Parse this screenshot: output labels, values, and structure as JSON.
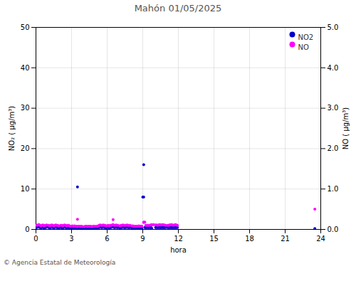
{
  "chart_data": {
    "type": "scatter",
    "title": "Mahón 01/05/2025",
    "xlabel": "hora",
    "ylabel": "NO₂ ( µg/m³)",
    "y2label": "NO ( µg/m³)",
    "annotations": [
      "© Agencia Estatal de Meteorología"
    ],
    "xlim": [
      0,
      24
    ],
    "xticks": [
      0,
      3,
      6,
      9,
      12,
      15,
      18,
      21,
      24
    ],
    "ylim": [
      0,
      50
    ],
    "yticks": [
      0,
      10,
      20,
      30,
      40,
      50
    ],
    "y2lim": [
      0,
      5
    ],
    "y2ticks": [
      0,
      1,
      2,
      3,
      4,
      5
    ],
    "grid": true,
    "legend": "upper right",
    "series": [
      {
        "name": "NO2",
        "color": "#0000cc",
        "x": [
          0.08,
          0.17,
          0.25,
          0.33,
          0.42,
          0.5,
          0.58,
          0.67,
          0.75,
          0.83,
          0.92,
          1.08,
          1.17,
          1.25,
          1.33,
          1.42,
          1.5,
          1.58,
          1.67,
          1.75,
          1.83,
          1.92,
          2.08,
          2.17,
          2.25,
          2.33,
          2.42,
          2.5,
          2.58,
          2.67,
          2.75,
          2.83,
          2.92,
          3.08,
          3.17,
          3.25,
          3.33,
          3.42,
          3.5,
          3.58,
          3.67,
          3.75,
          3.83,
          3.92,
          4.08,
          4.17,
          4.25,
          4.33,
          4.42,
          4.5,
          4.58,
          4.67,
          4.75,
          4.83,
          4.92,
          5.08,
          5.17,
          5.25,
          5.33,
          5.42,
          5.5,
          5.58,
          5.67,
          5.75,
          5.83,
          5.92,
          6.08,
          6.17,
          6.25,
          6.33,
          6.42,
          6.5,
          6.58,
          6.67,
          6.75,
          6.83,
          6.92,
          7.08,
          7.17,
          7.25,
          7.33,
          7.42,
          7.5,
          7.58,
          7.67,
          7.75,
          7.83,
          7.92,
          8.08,
          8.17,
          8.25,
          8.33,
          8.42,
          8.5,
          8.58,
          8.67,
          8.75,
          8.83,
          8.92,
          9.0,
          9.08,
          9.17,
          9.25,
          9.33,
          9.42,
          9.5,
          9.58,
          9.67,
          10.08,
          10.17,
          10.25,
          10.33,
          10.42,
          10.5,
          10.58,
          10.67,
          10.75,
          10.83,
          10.92,
          11.08,
          11.17,
          11.25,
          11.33,
          11.42,
          11.5,
          11.58,
          11.67,
          11.75,
          11.83,
          11.92,
          3.5,
          9.08,
          9.75,
          23.5
        ],
        "values": [
          0.5,
          0.6,
          0.7,
          0.5,
          0.4,
          0.5,
          0.6,
          0.4,
          0.5,
          0.5,
          0.6,
          0.5,
          0.4,
          0.5,
          0.6,
          0.5,
          0.4,
          0.5,
          0.6,
          0.5,
          0.5,
          0.4,
          0.5,
          0.5,
          0.4,
          0.5,
          0.6,
          0.5,
          0.4,
          0.5,
          0.5,
          0.4,
          0.3,
          0.4,
          0.3,
          0.4,
          0.3,
          0.3,
          0.2,
          0.3,
          0.3,
          0.2,
          0.3,
          0.2,
          0.2,
          0.3,
          0.3,
          0.2,
          0.3,
          0.2,
          0.3,
          0.2,
          0.2,
          0.3,
          0.3,
          0.3,
          0.3,
          0.4,
          0.5,
          0.6,
          0.5,
          0.5,
          0.6,
          0.5,
          0.5,
          0.4,
          0.5,
          0.4,
          0.5,
          0.5,
          0.6,
          0.7,
          0.5,
          0.5,
          0.6,
          0.5,
          0.5,
          0.4,
          0.5,
          0.5,
          0.6,
          0.5,
          0.5,
          0.5,
          0.6,
          0.5,
          0.5,
          0.5,
          0.4,
          0.4,
          0.3,
          0.3,
          0.3,
          0.3,
          0.3,
          0.4,
          0.3,
          0.3,
          0.3,
          8.0,
          16.0,
          0.5,
          0.5,
          0.5,
          0.5,
          0.5,
          0.5,
          0.5,
          0.5,
          0.5,
          0.5,
          0.5,
          0.5,
          0.5,
          0.5,
          0.5,
          0.5,
          0.5,
          0.5,
          0.5,
          0.5,
          0.5,
          0.5,
          0.5,
          0.5,
          0.5,
          0.5,
          0.5,
          0.5,
          0.5,
          10.5,
          8.0,
          0.3,
          0.2
        ]
      },
      {
        "name": "NO",
        "color": "#ff00ff",
        "axis": "y2",
        "x": [
          0.08,
          0.17,
          0.25,
          0.33,
          0.42,
          0.5,
          0.58,
          0.67,
          0.75,
          0.83,
          0.92,
          1.08,
          1.17,
          1.25,
          1.33,
          1.42,
          1.5,
          1.58,
          1.67,
          1.75,
          1.83,
          1.92,
          2.08,
          2.17,
          2.25,
          2.33,
          2.42,
          2.5,
          2.58,
          2.67,
          2.75,
          2.83,
          2.92,
          3.08,
          3.17,
          3.25,
          3.33,
          3.42,
          3.5,
          3.58,
          3.67,
          3.75,
          3.83,
          3.92,
          4.08,
          4.17,
          4.25,
          4.33,
          4.42,
          4.5,
          4.58,
          4.67,
          4.75,
          4.83,
          4.92,
          5.08,
          5.17,
          5.25,
          5.33,
          5.42,
          5.5,
          5.58,
          5.67,
          5.75,
          5.83,
          5.92,
          6.08,
          6.17,
          6.25,
          6.33,
          6.42,
          6.5,
          6.58,
          6.67,
          6.75,
          6.83,
          6.92,
          7.08,
          7.17,
          7.25,
          7.33,
          7.42,
          7.5,
          7.58,
          7.67,
          7.75,
          7.83,
          7.92,
          8.08,
          8.17,
          8.25,
          8.33,
          8.42,
          8.5,
          8.58,
          8.67,
          8.75,
          8.83,
          8.92,
          9.08,
          9.17,
          9.25,
          9.33,
          9.42,
          9.5,
          9.58,
          9.67,
          9.75,
          9.83,
          9.92,
          10.08,
          10.17,
          10.25,
          10.33,
          10.42,
          10.5,
          10.58,
          10.67,
          10.75,
          10.83,
          10.92,
          11.08,
          11.17,
          11.25,
          11.33,
          11.42,
          11.5,
          11.58,
          11.67,
          11.75,
          11.83,
          11.92,
          3.5,
          6.5,
          9.08,
          23.5
        ],
        "values": [
          0.1,
          0.11,
          0.12,
          0.1,
          0.09,
          0.1,
          0.11,
          0.09,
          0.1,
          0.1,
          0.11,
          0.1,
          0.09,
          0.1,
          0.11,
          0.1,
          0.09,
          0.1,
          0.11,
          0.1,
          0.1,
          0.09,
          0.1,
          0.1,
          0.09,
          0.1,
          0.11,
          0.1,
          0.09,
          0.1,
          0.1,
          0.09,
          0.08,
          0.09,
          0.08,
          0.09,
          0.08,
          0.08,
          0.07,
          0.08,
          0.08,
          0.07,
          0.08,
          0.07,
          0.07,
          0.08,
          0.08,
          0.07,
          0.08,
          0.07,
          0.08,
          0.07,
          0.07,
          0.08,
          0.08,
          0.08,
          0.08,
          0.09,
          0.1,
          0.11,
          0.1,
          0.1,
          0.11,
          0.1,
          0.1,
          0.09,
          0.1,
          0.09,
          0.1,
          0.1,
          0.11,
          0.12,
          0.1,
          0.1,
          0.11,
          0.1,
          0.1,
          0.09,
          0.1,
          0.1,
          0.11,
          0.1,
          0.1,
          0.1,
          0.11,
          0.1,
          0.1,
          0.1,
          0.09,
          0.09,
          0.08,
          0.08,
          0.08,
          0.08,
          0.08,
          0.09,
          0.08,
          0.08,
          0.08,
          0.17,
          0.18,
          0.1,
          0.1,
          0.1,
          0.1,
          0.1,
          0.11,
          0.12,
          0.11,
          0.12,
          0.11,
          0.11,
          0.1,
          0.11,
          0.12,
          0.11,
          0.11,
          0.12,
          0.11,
          0.11,
          0.1,
          0.1,
          0.1,
          0.11,
          0.11,
          0.12,
          0.11,
          0.1,
          0.11,
          0.12,
          0.11,
          0.1,
          0.25,
          0.24,
          0.18,
          0.5
        ]
      }
    ]
  }
}
